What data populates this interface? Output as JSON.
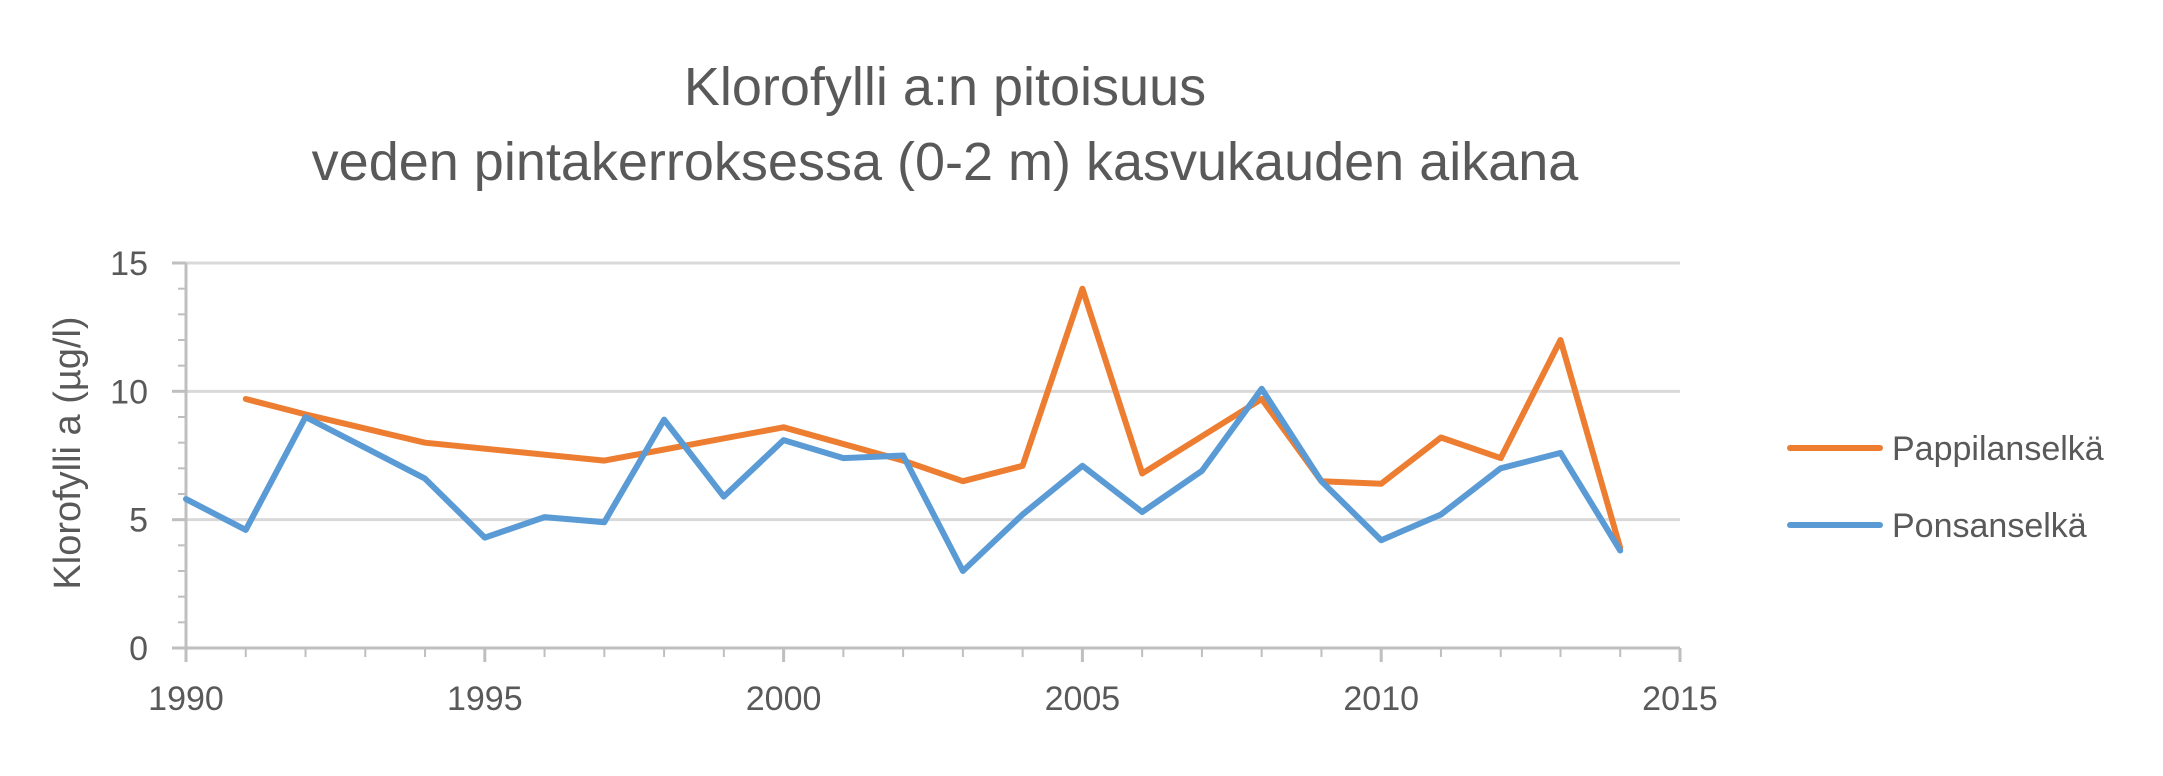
{
  "chart_data": {
    "type": "line",
    "title": [
      "Klorofylli a:n pitoisuus",
      "veden pintakerroksessa (0-2 m) kasvukauden aikana"
    ],
    "ylabel": "Klorofylli a (µg/l)",
    "xlabel": "",
    "xlim": [
      1990,
      2015
    ],
    "ylim": [
      0,
      15
    ],
    "x_ticks": [
      1990,
      1995,
      2000,
      2005,
      2010,
      2015
    ],
    "y_ticks": [
      0,
      5,
      10,
      15
    ],
    "grid": true,
    "legend_position": "right",
    "series": [
      {
        "name": "Pappilanselkä",
        "color": "#ED7D31",
        "points": [
          [
            1991,
            9.7
          ],
          [
            1992,
            9.1
          ],
          [
            1994,
            8.0
          ],
          [
            1997,
            7.3
          ],
          [
            2000,
            8.6
          ],
          [
            2002,
            7.3
          ],
          [
            2003,
            6.5
          ],
          [
            2004,
            7.1
          ],
          [
            2005,
            14.0
          ],
          [
            2006,
            6.8
          ],
          [
            2008,
            9.7
          ],
          [
            2009,
            6.5
          ],
          [
            2010,
            6.4
          ],
          [
            2011,
            8.2
          ],
          [
            2012,
            7.4
          ],
          [
            2013,
            12.0
          ],
          [
            2014,
            3.9
          ]
        ]
      },
      {
        "name": "Ponsanselkä",
        "color": "#5B9BD5",
        "points": [
          [
            1990,
            5.8
          ],
          [
            1991,
            4.6
          ],
          [
            1992,
            9.0
          ],
          [
            1994,
            6.6
          ],
          [
            1995,
            4.3
          ],
          [
            1996,
            5.1
          ],
          [
            1997,
            4.9
          ],
          [
            1998,
            8.9
          ],
          [
            1999,
            5.9
          ],
          [
            2000,
            8.1
          ],
          [
            2001,
            7.4
          ],
          [
            2002,
            7.5
          ],
          [
            2003,
            3.0
          ],
          [
            2004,
            5.2
          ],
          [
            2005,
            7.1
          ],
          [
            2006,
            5.3
          ],
          [
            2007,
            6.9
          ],
          [
            2008,
            10.1
          ],
          [
            2009,
            6.5
          ],
          [
            2010,
            4.2
          ],
          [
            2011,
            5.2
          ],
          [
            2012,
            7.0
          ],
          [
            2013,
            7.6
          ],
          [
            2014,
            3.8
          ]
        ]
      }
    ]
  }
}
